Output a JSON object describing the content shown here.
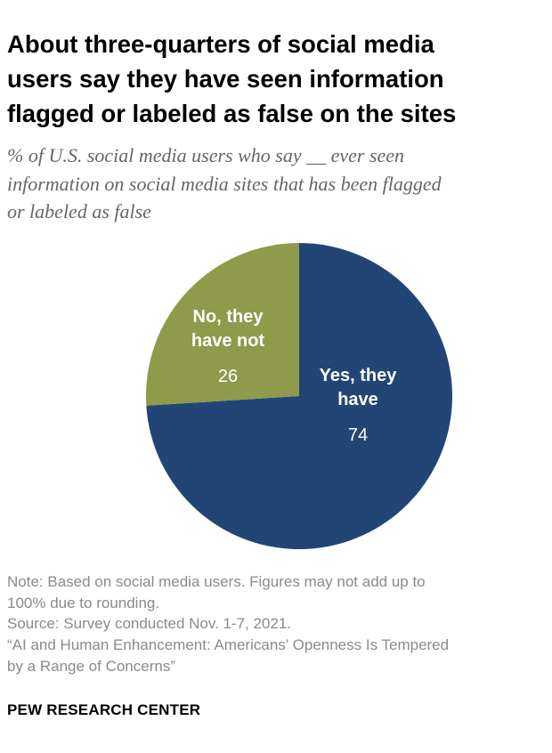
{
  "title": "About three-quarters of social media\nusers say they have seen information\nflagged or labeled as false on the sites",
  "subtitle": "% of U.S. social media users who say __ ever seen\ninformation on social media sites that has been flagged\nor labeled as false",
  "chart_data": {
    "type": "pie",
    "slices": [
      {
        "label": "Yes, they have",
        "label_lines": [
          "Yes, they",
          "have"
        ],
        "value": 74,
        "color": "#224575"
      },
      {
        "label": "No, they have not",
        "label_lines": [
          "No, they",
          "have not"
        ],
        "value": 26,
        "color": "#8f9a4b"
      }
    ]
  },
  "notes": {
    "note": "Note: Based on social media users. Figures may not add up to\n100% due to rounding.",
    "source": "Source: Survey conducted Nov. 1-7, 2021.",
    "report": "“AI and Human Enhancement: Americans’ Openness Is Tempered\nby a Range of Concerns”"
  },
  "brand": "PEW RESEARCH CENTER"
}
